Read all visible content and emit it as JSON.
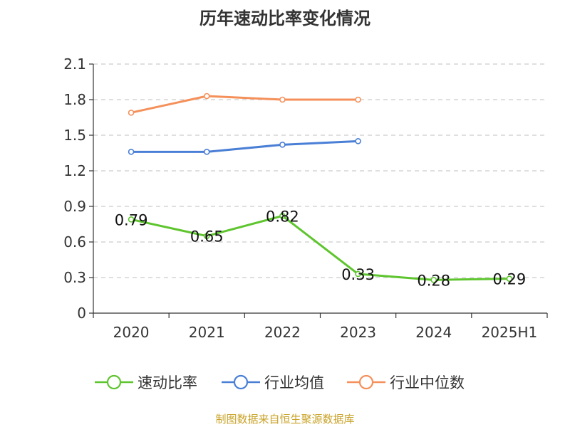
{
  "title": "历年速动比率变化情况",
  "source": "制图数据来自恒生聚源数据库",
  "colors": {
    "quick_ratio": "#5ec52e",
    "industry_mean": "#4a7fd6",
    "industry_median": "#f5905a",
    "axis": "#333333",
    "grid": "#cccccc",
    "source": "#c9a227"
  },
  "legend": [
    {
      "label": "速动比率",
      "color": "#5ec52e"
    },
    {
      "label": "行业均值",
      "color": "#4a7fd6"
    },
    {
      "label": "行业中位数",
      "color": "#f5905a"
    }
  ],
  "chart_data": {
    "type": "line",
    "title": "历年速动比率变化情况",
    "categories": [
      "2020",
      "2021",
      "2022",
      "2023",
      "2024",
      "2025H1"
    ],
    "ylim": [
      0,
      2.1
    ],
    "yticks": [
      "0",
      "0.3",
      "0.6",
      "0.9",
      "1.2",
      "1.5",
      "1.8",
      "2.1"
    ],
    "grid": "horizontal dashed",
    "legend_position": "bottom",
    "series": [
      {
        "name": "速动比率",
        "values": [
          0.79,
          0.65,
          0.82,
          0.33,
          0.28,
          0.29
        ],
        "labels": [
          "0.79",
          "0.65",
          "0.82",
          "0.33",
          "0.28",
          "0.29"
        ],
        "color": "#5ec52e"
      },
      {
        "name": "行业均值",
        "values": [
          1.36,
          1.36,
          1.42,
          1.45,
          null,
          null
        ],
        "color": "#4a7fd6"
      },
      {
        "name": "行业中位数",
        "values": [
          1.69,
          1.83,
          1.8,
          1.8,
          null,
          null
        ],
        "color": "#f5905a"
      }
    ]
  }
}
